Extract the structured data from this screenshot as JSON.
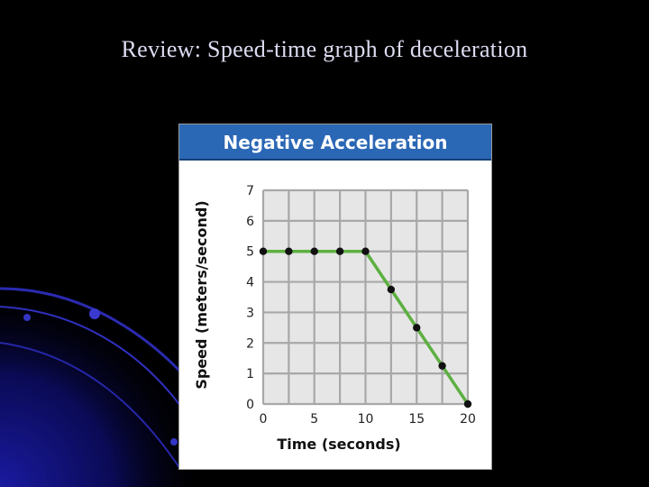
{
  "slide": {
    "title": "Review: Speed-time graph of deceleration"
  },
  "chart_data": {
    "type": "line",
    "title": "Negative Acceleration",
    "xlabel": "Time (seconds)",
    "ylabel": "Speed (meters/second)",
    "xlim": [
      0,
      20
    ],
    "ylim": [
      0,
      7
    ],
    "x_ticks": [
      0,
      5,
      10,
      15,
      20
    ],
    "y_ticks": [
      0,
      1,
      2,
      3,
      4,
      5,
      6,
      7
    ],
    "grid": true,
    "series": [
      {
        "x": [
          0,
          2.5,
          5,
          7.5,
          10,
          12.5,
          15,
          17.5,
          20
        ],
        "y": [
          5,
          5,
          5,
          5,
          5,
          3.75,
          2.5,
          1.25,
          0
        ]
      }
    ],
    "colors": {
      "line": "#5cb040",
      "marker": "#111111",
      "header": "#2a67b5",
      "grid": "#a8a8a8"
    }
  }
}
